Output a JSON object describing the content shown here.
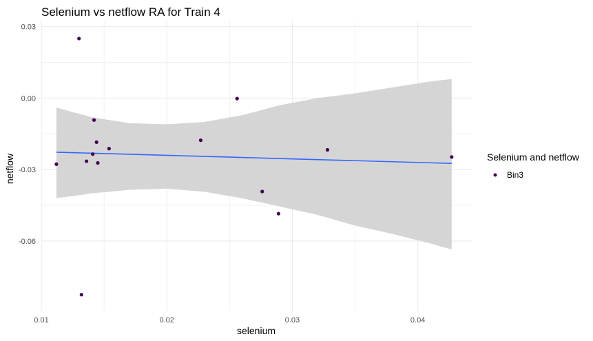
{
  "chart_data": {
    "type": "scatter",
    "title": "Selenium vs netflow RA for Train 4",
    "xlabel": "selenium",
    "ylabel": "netflow",
    "xlim": [
      0.01,
      0.0443
    ],
    "ylim": [
      -0.0895,
      0.0325
    ],
    "x_ticks": [
      0.01,
      0.02,
      0.03,
      0.04
    ],
    "x_tick_labels": [
      "0.01",
      "0.02",
      "0.03",
      "0.04"
    ],
    "y_ticks": [
      0.03,
      0.0,
      -0.03,
      -0.06
    ],
    "y_tick_labels": [
      "0.03",
      "0.00",
      "-0.03",
      "-0.06"
    ],
    "grid": true,
    "legend": {
      "title": "Selenium and netflow",
      "entries": [
        "Bin3"
      ],
      "placement": "right"
    },
    "colors": {
      "point": "#440154",
      "trend": "#3366FF",
      "ribbon": "#d3d3d3",
      "grid": "#ebebeb"
    },
    "series": [
      {
        "name": "Bin3",
        "points": [
          {
            "x": 0.0112,
            "y": -0.0277
          },
          {
            "x": 0.013,
            "y": 0.025
          },
          {
            "x": 0.0132,
            "y": -0.0825
          },
          {
            "x": 0.0136,
            "y": -0.0265
          },
          {
            "x": 0.0141,
            "y": -0.0235
          },
          {
            "x": 0.0142,
            "y": -0.0092
          },
          {
            "x": 0.0144,
            "y": -0.0185
          },
          {
            "x": 0.0145,
            "y": -0.0272
          },
          {
            "x": 0.0154,
            "y": -0.0212
          },
          {
            "x": 0.0227,
            "y": -0.0177
          },
          {
            "x": 0.0256,
            "y": -0.0002
          },
          {
            "x": 0.0276,
            "y": -0.0392
          },
          {
            "x": 0.0289,
            "y": -0.0485
          },
          {
            "x": 0.0328,
            "y": -0.0217
          },
          {
            "x": 0.0427,
            "y": -0.0247
          }
        ]
      }
    ],
    "trend_line": {
      "x": [
        0.0112,
        0.0427
      ],
      "y": [
        -0.0227,
        -0.0274
      ]
    },
    "confidence_band": {
      "x": [
        0.0112,
        0.014,
        0.017,
        0.02,
        0.023,
        0.026,
        0.029,
        0.032,
        0.035,
        0.038,
        0.041,
        0.0427
      ],
      "upper": [
        -0.004,
        -0.008,
        -0.0105,
        -0.011,
        -0.01,
        -0.0072,
        -0.003,
        0.0,
        0.002,
        0.0045,
        0.007,
        0.008
      ],
      "lower": [
        -0.042,
        -0.04,
        -0.0385,
        -0.038,
        -0.0393,
        -0.042,
        -0.0455,
        -0.049,
        -0.0535,
        -0.057,
        -0.061,
        -0.0635
      ]
    }
  }
}
